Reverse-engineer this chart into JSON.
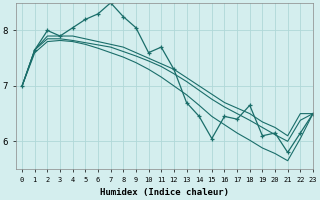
{
  "xlabel": "Humidex (Indice chaleur)",
  "bg_color": "#d4eeee",
  "grid_color": "#b0d8d8",
  "line_color": "#1a6e6a",
  "xlim": [
    -0.5,
    23
  ],
  "ylim": [
    5.5,
    8.5
  ],
  "yticks": [
    6,
    7,
    8
  ],
  "xticks": [
    0,
    1,
    2,
    3,
    4,
    5,
    6,
    7,
    8,
    9,
    10,
    11,
    12,
    13,
    14,
    15,
    16,
    17,
    18,
    19,
    20,
    21,
    22,
    23
  ],
  "lines": [
    {
      "x": [
        0,
        1,
        2,
        3,
        4,
        5,
        6,
        7,
        8,
        9,
        10,
        11,
        12,
        13,
        14,
        15,
        16,
        17,
        18,
        19,
        20,
        21,
        22,
        23
      ],
      "y": [
        7.0,
        7.65,
        8.0,
        7.9,
        8.05,
        8.2,
        8.3,
        8.5,
        8.25,
        8.05,
        7.6,
        7.7,
        7.3,
        6.7,
        6.45,
        6.05,
        6.45,
        6.4,
        6.65,
        6.1,
        6.15,
        5.8,
        6.15,
        6.5
      ],
      "marker": true
    },
    {
      "x": [
        0,
        1,
        2,
        3,
        4,
        5,
        6,
        7,
        8,
        9,
        10,
        11,
        12,
        13,
        14,
        15,
        16,
        17,
        18,
        19,
        20,
        21,
        22,
        23
      ],
      "y": [
        7.0,
        7.65,
        7.9,
        7.9,
        7.9,
        7.85,
        7.8,
        7.75,
        7.7,
        7.6,
        7.5,
        7.4,
        7.3,
        7.15,
        7.0,
        6.85,
        6.7,
        6.6,
        6.5,
        6.35,
        6.25,
        6.1,
        6.5,
        6.5
      ],
      "marker": false
    },
    {
      "x": [
        0,
        1,
        2,
        3,
        4,
        5,
        6,
        7,
        8,
        9,
        10,
        11,
        12,
        13,
        14,
        15,
        16,
        17,
        18,
        19,
        20,
        21,
        22,
        23
      ],
      "y": [
        7.0,
        7.65,
        7.85,
        7.85,
        7.82,
        7.78,
        7.74,
        7.7,
        7.62,
        7.54,
        7.45,
        7.35,
        7.22,
        7.08,
        6.92,
        6.76,
        6.62,
        6.5,
        6.38,
        6.25,
        6.12,
        6.0,
        6.38,
        6.5
      ],
      "marker": false
    },
    {
      "x": [
        0,
        1,
        2,
        3,
        4,
        5,
        6,
        7,
        8,
        9,
        10,
        11,
        12,
        13,
        14,
        15,
        16,
        17,
        18,
        19,
        20,
        21,
        22,
        23
      ],
      "y": [
        7.0,
        7.6,
        7.8,
        7.82,
        7.8,
        7.75,
        7.68,
        7.6,
        7.52,
        7.42,
        7.3,
        7.16,
        7.0,
        6.84,
        6.65,
        6.45,
        6.3,
        6.15,
        6.02,
        5.88,
        5.78,
        5.65,
        6.05,
        6.5
      ],
      "marker": false
    }
  ]
}
